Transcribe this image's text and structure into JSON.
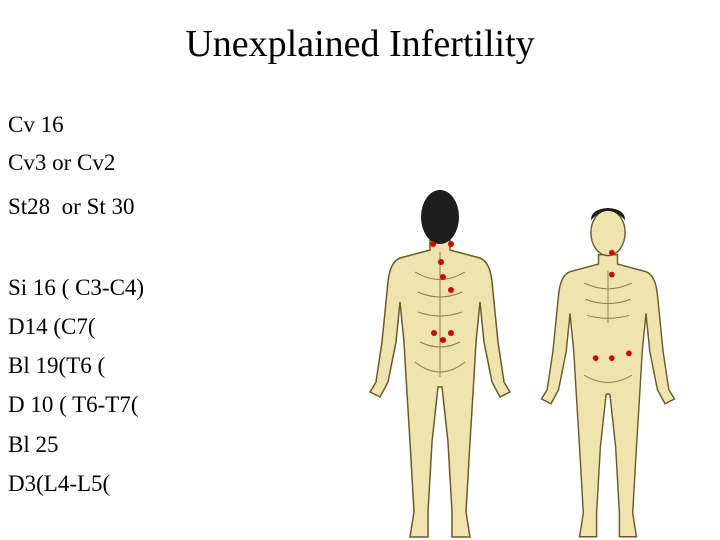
{
  "title": "Unexplained Infertility",
  "lines": [
    "Cv 16",
    "Cv3 or Cv2",
    "St28  or St 30",
    "Si 16 ( C3-C4)",
    "D14 (C7(",
    "Bl 19(T6 (",
    "D 10 ( T6-T7(",
    "Bl 25",
    "D3(L4-L5("
  ]
}
